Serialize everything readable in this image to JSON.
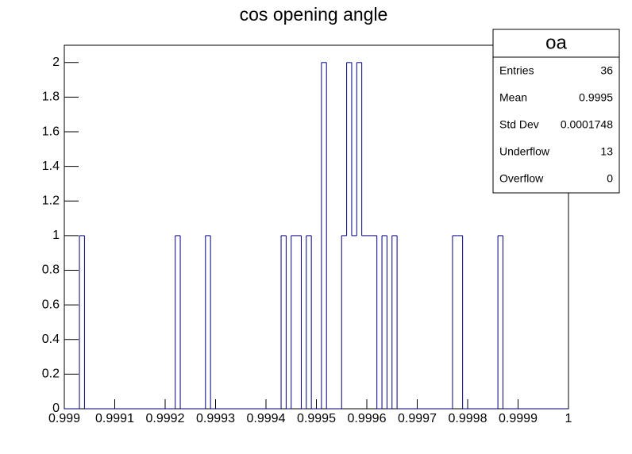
{
  "chart_data": {
    "type": "histogram",
    "title": "cos opening angle",
    "bins": [
      0.999,
      0.99901,
      0.99902,
      0.99903,
      0.99904,
      0.99905,
      0.99906,
      0.99907,
      0.99908,
      0.99909,
      0.9991,
      0.99911,
      0.99912,
      0.99913,
      0.99914,
      0.99915,
      0.99916,
      0.99917,
      0.99918,
      0.99919,
      0.9992,
      0.99921,
      0.99922,
      0.99923,
      0.99924,
      0.99925,
      0.99926,
      0.99927,
      0.99928,
      0.99929,
      0.9993,
      0.99931,
      0.99932,
      0.99933,
      0.99934,
      0.99935,
      0.99936,
      0.99937,
      0.99938,
      0.99939,
      0.9994,
      0.99941,
      0.99942,
      0.99943,
      0.99944,
      0.99945,
      0.99946,
      0.99947,
      0.99948,
      0.99949,
      0.9995,
      0.99951,
      0.99952,
      0.99953,
      0.99954,
      0.99955,
      0.99956,
      0.99957,
      0.99958,
      0.99959,
      0.9996,
      0.99961,
      0.99962,
      0.99963,
      0.99964,
      0.99965,
      0.99966,
      0.99967,
      0.99968,
      0.99969,
      0.9997,
      0.99971,
      0.99972,
      0.99973,
      0.99974,
      0.99975,
      0.99976,
      0.99977,
      0.99978,
      0.99979,
      0.9998,
      0.99981,
      0.99982,
      0.99983,
      0.99984,
      0.99985,
      0.99986,
      0.99987,
      0.99988,
      0.99989,
      0.9999,
      0.99991,
      0.99992,
      0.99993,
      0.99994,
      0.99995,
      0.99996,
      0.99997,
      0.99998,
      0.99999,
      1
    ],
    "values": [
      0,
      0,
      0,
      1,
      0,
      0,
      0,
      0,
      0,
      0,
      0,
      0,
      0,
      0,
      0,
      0,
      0,
      0,
      0,
      0,
      0,
      0,
      1,
      0,
      0,
      0,
      0,
      0,
      1,
      0,
      0,
      0,
      0,
      0,
      0,
      0,
      0,
      0,
      0,
      0,
      0,
      0,
      0,
      1,
      0,
      1,
      1,
      0,
      1,
      0,
      0,
      2,
      0,
      0,
      0,
      1,
      2,
      1,
      2,
      1,
      1,
      1,
      0,
      1,
      0,
      1,
      0,
      0,
      0,
      0,
      0,
      0,
      0,
      0,
      0,
      0,
      0,
      1,
      1,
      0,
      0,
      0,
      0,
      0,
      0,
      0,
      1,
      0,
      0,
      0,
      0,
      0,
      0,
      0,
      0,
      0,
      0,
      0,
      0,
      0
    ],
    "color": "#000080",
    "xlim": [
      0.999,
      1
    ],
    "xticks": [
      0.999,
      0.9991,
      0.9992,
      0.9993,
      0.9994,
      0.9995,
      0.9996,
      0.9997,
      0.9998,
      0.9999,
      1
    ],
    "ylim": [
      0,
      2.1
    ],
    "yticks": [
      0,
      0.2,
      0.4,
      0.6,
      0.8,
      1,
      1.2,
      1.4,
      1.6,
      1.8,
      2
    ],
    "stats": {
      "name": "oa",
      "rows": [
        {
          "label": "Entries",
          "value": 36
        },
        {
          "label": "Mean",
          "value": 0.9995
        },
        {
          "label": "Std Dev",
          "value": 0.0001748
        },
        {
          "label": "Underflow",
          "value": 13
        },
        {
          "label": "Overflow",
          "value": 0
        }
      ]
    }
  }
}
